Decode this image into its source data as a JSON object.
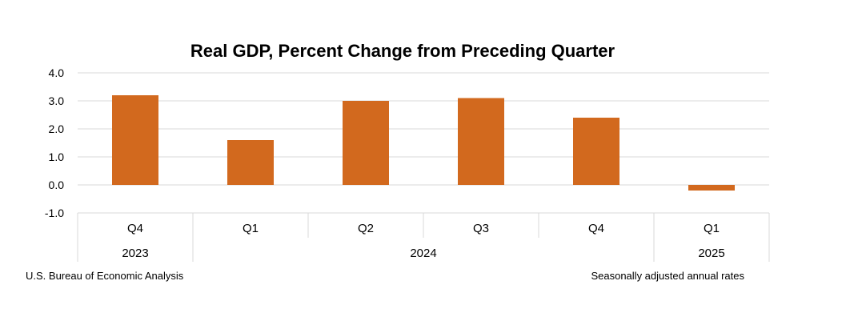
{
  "chart_data": {
    "type": "bar",
    "title": "Real GDP, Percent Change from Preceding Quarter",
    "categories": [
      "Q4",
      "Q1",
      "Q2",
      "Q3",
      "Q4",
      "Q1"
    ],
    "values": [
      3.2,
      1.6,
      3.0,
      3.1,
      2.4,
      -0.2
    ],
    "year_groups": [
      {
        "label": "2023",
        "span": 1
      },
      {
        "label": "2024",
        "span": 4
      },
      {
        "label": "2025",
        "span": 1
      }
    ],
    "y_ticks": [
      "4.0",
      "3.0",
      "2.0",
      "1.0",
      "0.0",
      "-1.0"
    ],
    "ylim": [
      -1.0,
      4.0
    ],
    "grid": true,
    "bar_color": "#D2691E",
    "grid_color": "#D9D9D9"
  },
  "footer": {
    "source": "U.S. Bureau of Economic Analysis",
    "note": "Seasonally adjusted annual rates"
  }
}
